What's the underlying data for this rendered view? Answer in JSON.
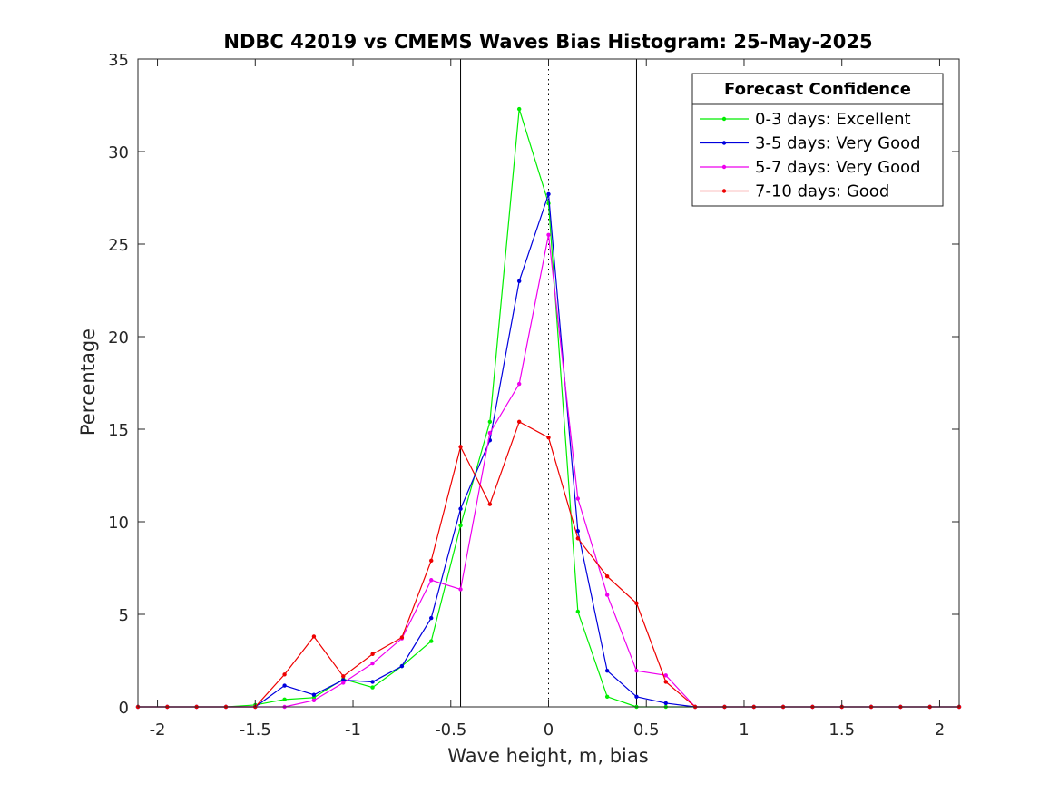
{
  "chart_data": {
    "type": "line",
    "title": "NDBC 42019 vs CMEMS Waves Bias Histogram: 25-May-2025",
    "xlabel": "Wave height, m, bias",
    "ylabel": "Percentage",
    "xlim": [
      -2.1,
      2.1
    ],
    "ylim": [
      0,
      35
    ],
    "xticks": [
      -2,
      -1.5,
      -1,
      -0.5,
      0,
      0.5,
      1,
      1.5,
      2
    ],
    "xtick_labels": [
      "-2",
      "-1.5",
      "-1",
      "-0.5",
      "0",
      "0.5",
      "1",
      "1.5",
      "2"
    ],
    "yticks": [
      0,
      5,
      10,
      15,
      20,
      25,
      30,
      35
    ],
    "ytick_labels": [
      "0",
      "5",
      "10",
      "15",
      "20",
      "25",
      "30",
      "35"
    ],
    "grid": false,
    "reference_lines": [
      {
        "x": -0.45,
        "style": "solid"
      },
      {
        "x": 0,
        "style": "dotted"
      },
      {
        "x": 0.45,
        "style": "solid"
      }
    ],
    "legend": {
      "title": "Forecast Confidence",
      "placement": "top-right"
    },
    "x": [
      -2.1,
      -1.95,
      -1.8,
      -1.65,
      -1.5,
      -1.35,
      -1.2,
      -1.05,
      -0.9,
      -0.75,
      -0.6,
      -0.45,
      -0.3,
      -0.15,
      0,
      0.15,
      0.3,
      0.45,
      0.6,
      0.75,
      0.9,
      1.05,
      1.2,
      1.35,
      1.5,
      1.65,
      1.8,
      1.95,
      2.1
    ],
    "series": [
      {
        "name": "0-3 days: Excellent",
        "color": "#00ee00",
        "values": [
          0,
          0,
          0,
          0,
          0.1,
          0.4,
          0.5,
          1.5,
          1.05,
          2.2,
          3.55,
          9.8,
          15.4,
          32.3,
          27.2,
          5.15,
          0.55,
          0,
          0,
          0,
          0,
          0,
          0,
          0,
          0,
          0,
          0,
          0,
          0
        ]
      },
      {
        "name": "3-5 days: Very Good",
        "color": "#0000dd",
        "values": [
          0,
          0,
          0,
          0,
          0,
          1.15,
          0.65,
          1.45,
          1.35,
          2.2,
          4.8,
          10.7,
          14.4,
          23.0,
          27.7,
          9.5,
          1.95,
          0.55,
          0.2,
          0,
          0,
          0,
          0,
          0,
          0,
          0,
          0,
          0,
          0
        ]
      },
      {
        "name": "5-7 days: Very Good",
        "color": "#ee00ee",
        "values": [
          0,
          0,
          0,
          0,
          0,
          0,
          0.35,
          1.3,
          2.35,
          3.7,
          6.85,
          6.35,
          14.8,
          17.45,
          25.5,
          11.25,
          6.05,
          1.95,
          1.7,
          0,
          0,
          0,
          0,
          0,
          0,
          0,
          0,
          0,
          0
        ]
      },
      {
        "name": "7-10 days: Good",
        "color": "#ee0000",
        "values": [
          0,
          0,
          0,
          0,
          0,
          1.75,
          3.8,
          1.65,
          2.85,
          3.75,
          7.9,
          14.05,
          10.95,
          15.4,
          14.55,
          9.1,
          7.05,
          5.6,
          1.35,
          0,
          0,
          0,
          0,
          0,
          0,
          0,
          0,
          0,
          0
        ]
      }
    ]
  }
}
